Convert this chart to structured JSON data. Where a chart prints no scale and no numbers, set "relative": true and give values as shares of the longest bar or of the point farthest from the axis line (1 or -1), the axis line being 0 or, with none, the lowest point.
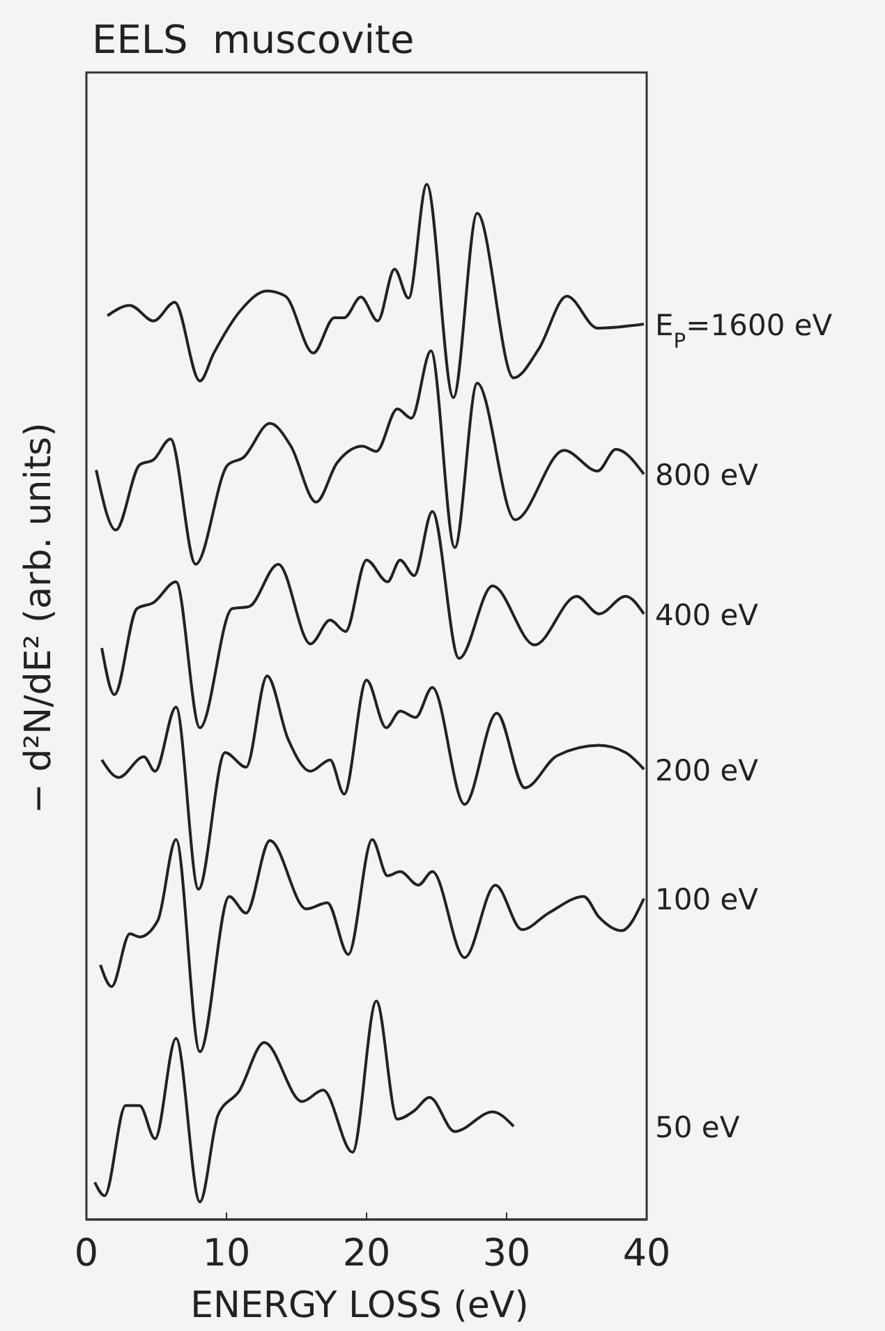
{
  "chart_data": {
    "type": "line",
    "title": "EELS  muscovite",
    "xlabel": "ENERGY LOSS (eV)",
    "ylabel": "− d²N/dE²  (arb. units)",
    "relative": true,
    "xlim": [
      0,
      40
    ],
    "xticks": [
      0,
      10,
      20,
      30,
      40
    ],
    "grid": false,
    "legend": false,
    "marker": "none",
    "line_style": "solid",
    "series": [
      {
        "name": "E$_{P}$=1600 eV",
        "color": "#222222",
        "x": [
          1.5,
          3.1,
          4.8,
          6.3,
          8.1,
          9.1,
          11.0,
          12.9,
          14.2,
          16.2,
          17.7,
          18.4,
          19.6,
          20.8,
          22.0,
          23.0,
          24.3,
          26.2,
          27.9,
          30.5,
          32.3,
          34.3,
          36.5,
          39.8
        ],
        "values": [
          0.873,
          0.883,
          0.868,
          0.886,
          0.81,
          0.837,
          0.878,
          0.897,
          0.892,
          0.837,
          0.871,
          0.871,
          0.891,
          0.868,
          0.918,
          0.89,
          1.0,
          0.794,
          0.972,
          0.813,
          0.841,
          0.892,
          0.861,
          0.865
        ]
      },
      {
        "name": "800 eV",
        "color": "#222222",
        "x": [
          0.7,
          2.1,
          3.8,
          4.8,
          6.0,
          7.8,
          10.1,
          11.2,
          13.1,
          14.6,
          16.4,
          17.9,
          19.7,
          20.7,
          22.2,
          23.2,
          24.6,
          26.3,
          27.9,
          30.6,
          34.1,
          36.5,
          37.8,
          39.8
        ],
        "values": [
          0.724,
          0.666,
          0.729,
          0.734,
          0.754,
          0.633,
          0.729,
          0.736,
          0.769,
          0.747,
          0.693,
          0.731,
          0.747,
          0.742,
          0.783,
          0.774,
          0.839,
          0.649,
          0.808,
          0.676,
          0.743,
          0.723,
          0.744,
          0.72
        ]
      },
      {
        "name": "400 eV",
        "color": "#222222",
        "x": [
          1.1,
          2.0,
          3.6,
          4.8,
          6.4,
          8.1,
          10.4,
          11.6,
          13.7,
          16.0,
          17.4,
          18.5,
          20.0,
          21.5,
          22.4,
          23.4,
          24.7,
          26.6,
          29.0,
          32.0,
          35.0,
          36.6,
          38.5,
          39.8
        ],
        "values": [
          0.552,
          0.507,
          0.59,
          0.596,
          0.616,
          0.475,
          0.59,
          0.592,
          0.633,
          0.556,
          0.579,
          0.568,
          0.637,
          0.616,
          0.637,
          0.622,
          0.684,
          0.542,
          0.612,
          0.555,
          0.602,
          0.585,
          0.602,
          0.585
        ]
      },
      {
        "name": "200 eV",
        "color": "#222222",
        "x": [
          1.1,
          2.3,
          4.1,
          4.9,
          6.4,
          8.0,
          9.9,
          11.4,
          12.9,
          14.4,
          16.0,
          17.4,
          18.4,
          20.0,
          21.4,
          22.4,
          23.5,
          24.7,
          27.0,
          29.3,
          31.3,
          33.6,
          36.6,
          38.5,
          39.8
        ],
        "values": [
          0.444,
          0.427,
          0.447,
          0.433,
          0.495,
          0.319,
          0.451,
          0.437,
          0.525,
          0.464,
          0.433,
          0.444,
          0.411,
          0.521,
          0.475,
          0.491,
          0.485,
          0.514,
          0.401,
          0.489,
          0.417,
          0.448,
          0.458,
          0.451,
          0.435
        ]
      },
      {
        "name": "100 eV",
        "color": "#222222",
        "x": [
          1.0,
          1.8,
          3.1,
          3.8,
          5.1,
          6.4,
          8.1,
          10.2,
          11.4,
          13.1,
          15.7,
          17.2,
          18.7,
          20.4,
          21.5,
          22.4,
          23.7,
          24.7,
          27.0,
          29.2,
          31.1,
          33.0,
          35.5,
          36.6,
          38.2,
          39.8
        ],
        "values": [
          0.246,
          0.225,
          0.276,
          0.273,
          0.289,
          0.367,
          0.162,
          0.312,
          0.296,
          0.366,
          0.3,
          0.306,
          0.256,
          0.367,
          0.332,
          0.336,
          0.323,
          0.336,
          0.253,
          0.323,
          0.28,
          0.296,
          0.312,
          0.292,
          0.279,
          0.31
        ]
      },
      {
        "name": "50 eV",
        "color": "#222222",
        "x": [
          0.6,
          1.3,
          2.8,
          3.8,
          4.9,
          6.4,
          8.1,
          9.4,
          10.9,
          12.7,
          15.4,
          16.9,
          19.0,
          20.7,
          22.2,
          23.4,
          24.5,
          26.3,
          29.0,
          30.5
        ],
        "values": [
          0.036,
          0.023,
          0.11,
          0.11,
          0.078,
          0.175,
          0.017,
          0.101,
          0.124,
          0.171,
          0.114,
          0.125,
          0.065,
          0.211,
          0.097,
          0.105,
          0.118,
          0.085,
          0.104,
          0.09
        ]
      }
    ]
  }
}
